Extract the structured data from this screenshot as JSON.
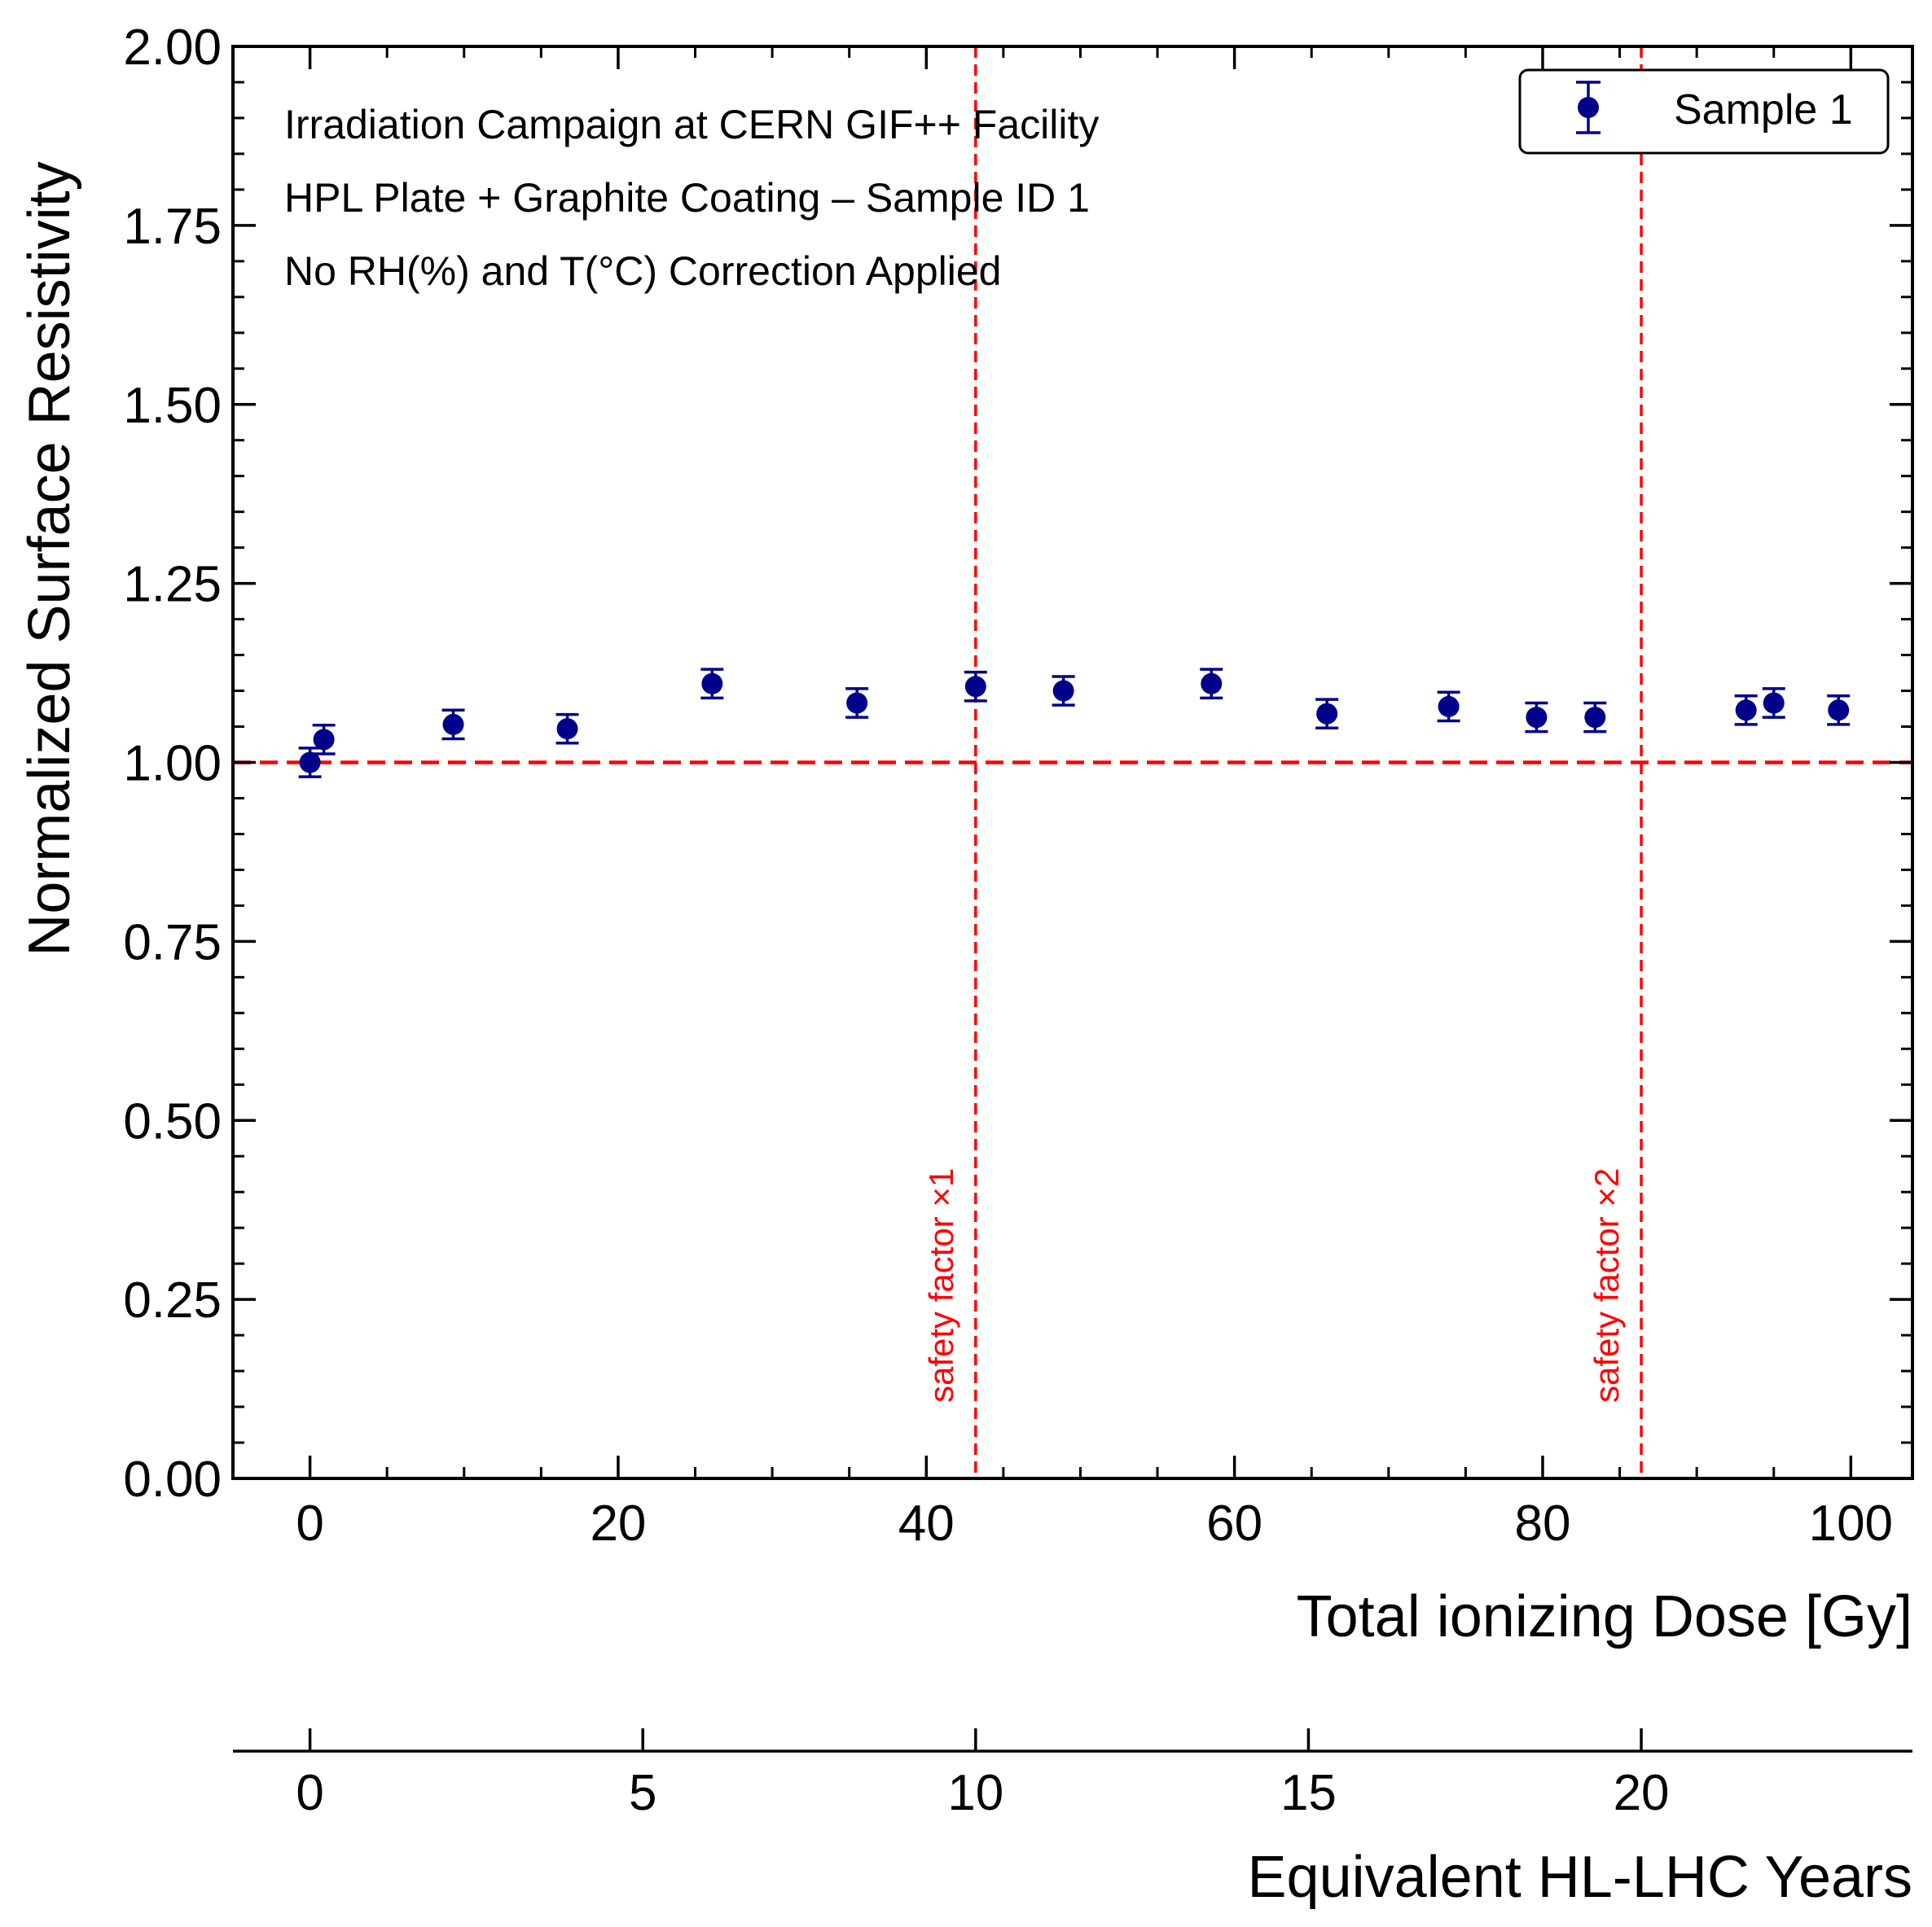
{
  "chart_data": {
    "type": "scatter",
    "annotation_lines": [
      "Irradiation Campaign at CERN GIF++ Facility",
      "HPL Plate + Graphite Coating – Sample ID 1",
      "No RH(%) and T(°C) Correction Applied"
    ],
    "xlabel": "Total ionizing Dose [Gy]",
    "ylabel": "Normalized Surface Resistivity",
    "secondary_xlabel": "Equivalent HL-LHC Years",
    "xlim": [
      -5,
      104
    ],
    "ylim": [
      0,
      2.0
    ],
    "x_ticks": [
      0,
      20,
      40,
      60,
      80,
      100
    ],
    "x_tick_labels": [
      "0",
      "20",
      "40",
      "60",
      "80",
      "100"
    ],
    "x_minor_step": 5,
    "y_ticks": [
      0,
      0.25,
      0.5,
      0.75,
      1.0,
      1.25,
      1.5,
      1.75,
      2.0
    ],
    "y_tick_labels": [
      "0.00",
      "0.25",
      "0.50",
      "0.75",
      "1.00",
      "1.25",
      "1.50",
      "1.75",
      "2.00"
    ],
    "y_minor_step": 0.05,
    "secondary_x_ticks": [
      0,
      5,
      10,
      15,
      20
    ],
    "secondary_x_tick_labels": [
      "0",
      "5",
      "10",
      "15",
      "20"
    ],
    "years_to_dose_factor": 4.32,
    "series": [
      {
        "name": "Sample 1",
        "color": "#00008b",
        "x": [
          0,
          0.9,
          9.3,
          16.7,
          26.1,
          35.5,
          43.2,
          48.9,
          58.5,
          66.0,
          73.9,
          79.6,
          83.4,
          93.2,
          95.0,
          99.2
        ],
        "y": [
          1.0,
          1.032,
          1.053,
          1.047,
          1.11,
          1.083,
          1.106,
          1.1,
          1.11,
          1.068,
          1.078,
          1.063,
          1.063,
          1.073,
          1.083,
          1.073
        ],
        "yerr": [
          0.02,
          0.02,
          0.02,
          0.02,
          0.02,
          0.02,
          0.02,
          0.02,
          0.02,
          0.02,
          0.02,
          0.02,
          0.02,
          0.02,
          0.02,
          0.02
        ]
      }
    ],
    "reference_lines": [
      {
        "orientation": "horizontal",
        "value": 1.0,
        "color": "#ff0000",
        "label": ""
      },
      {
        "orientation": "vertical",
        "value": 43.2,
        "color": "#ff0000",
        "label": "safety factor ×1"
      },
      {
        "orientation": "vertical",
        "value": 86.4,
        "color": "#ff0000",
        "label": "safety factor ×2"
      }
    ],
    "legend": {
      "position": "top-right",
      "entries": [
        "Sample 1"
      ]
    },
    "grid": false
  }
}
